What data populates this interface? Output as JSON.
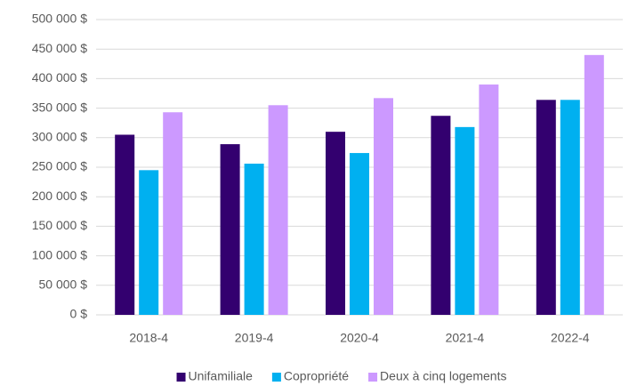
{
  "chart_data": {
    "type": "bar",
    "categories": [
      "2018-4",
      "2019-4",
      "2020-4",
      "2021-4",
      "2022-4"
    ],
    "series": [
      {
        "name": "Unifamiliale",
        "color": "#33006f",
        "values": [
          305000,
          289000,
          310000,
          337000,
          364000
        ]
      },
      {
        "name": "Copropriété",
        "color": "#00b0f0",
        "values": [
          245000,
          256000,
          274000,
          318000,
          364000
        ]
      },
      {
        "name": "Deux à cinq logements",
        "color": "#cc99ff",
        "values": [
          343000,
          355000,
          367000,
          390000,
          440000
        ]
      }
    ],
    "ylim": [
      0,
      500000
    ],
    "yticks": [
      {
        "value": 0,
        "label": "0 $"
      },
      {
        "value": 50000,
        "label": "50 000 $"
      },
      {
        "value": 100000,
        "label": "100 000 $"
      },
      {
        "value": 150000,
        "label": "150 000 $"
      },
      {
        "value": 200000,
        "label": "200 000 $"
      },
      {
        "value": 250000,
        "label": "250 000 $"
      },
      {
        "value": 300000,
        "label": "300 000 $"
      },
      {
        "value": 350000,
        "label": "350 000 $"
      },
      {
        "value": 400000,
        "label": "400 000 $"
      },
      {
        "value": 450000,
        "label": "450 000 $"
      },
      {
        "value": 500000,
        "label": "500 000 $"
      }
    ],
    "grid": true,
    "legend": "bottom"
  }
}
